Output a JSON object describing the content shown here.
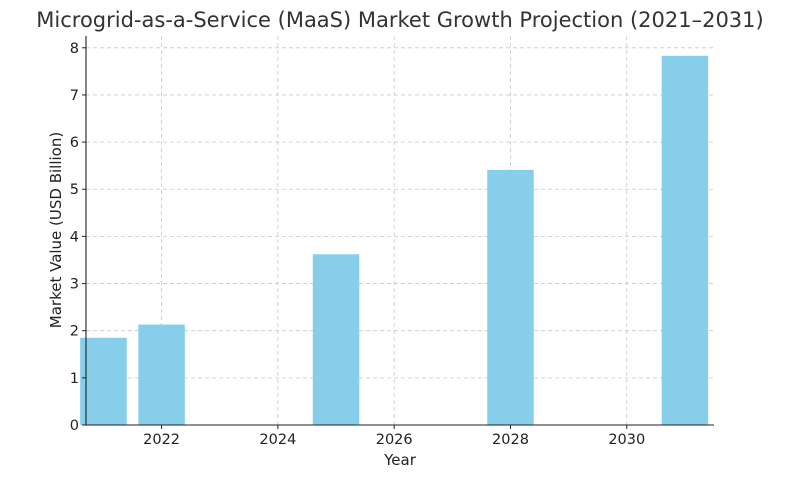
{
  "chart_data": {
    "type": "bar",
    "title": "Microgrid-as-a-Service (MaaS) Market Growth Projection (2021–2031)",
    "xlabel": "Year",
    "ylabel": "Market Value (USD Billion)",
    "x": [
      2021,
      2022,
      2025,
      2028,
      2031
    ],
    "values": [
      1.85,
      2.13,
      3.62,
      5.41,
      7.83
    ],
    "xlim": [
      2020.7,
      2031.5
    ],
    "ylim": [
      0,
      8.25
    ],
    "xticks": [
      2022,
      2024,
      2026,
      2028,
      2030
    ],
    "yticks": [
      0,
      1,
      2,
      3,
      4,
      5,
      6,
      7,
      8
    ],
    "grid": true,
    "bar_color": "#87ceeb"
  }
}
